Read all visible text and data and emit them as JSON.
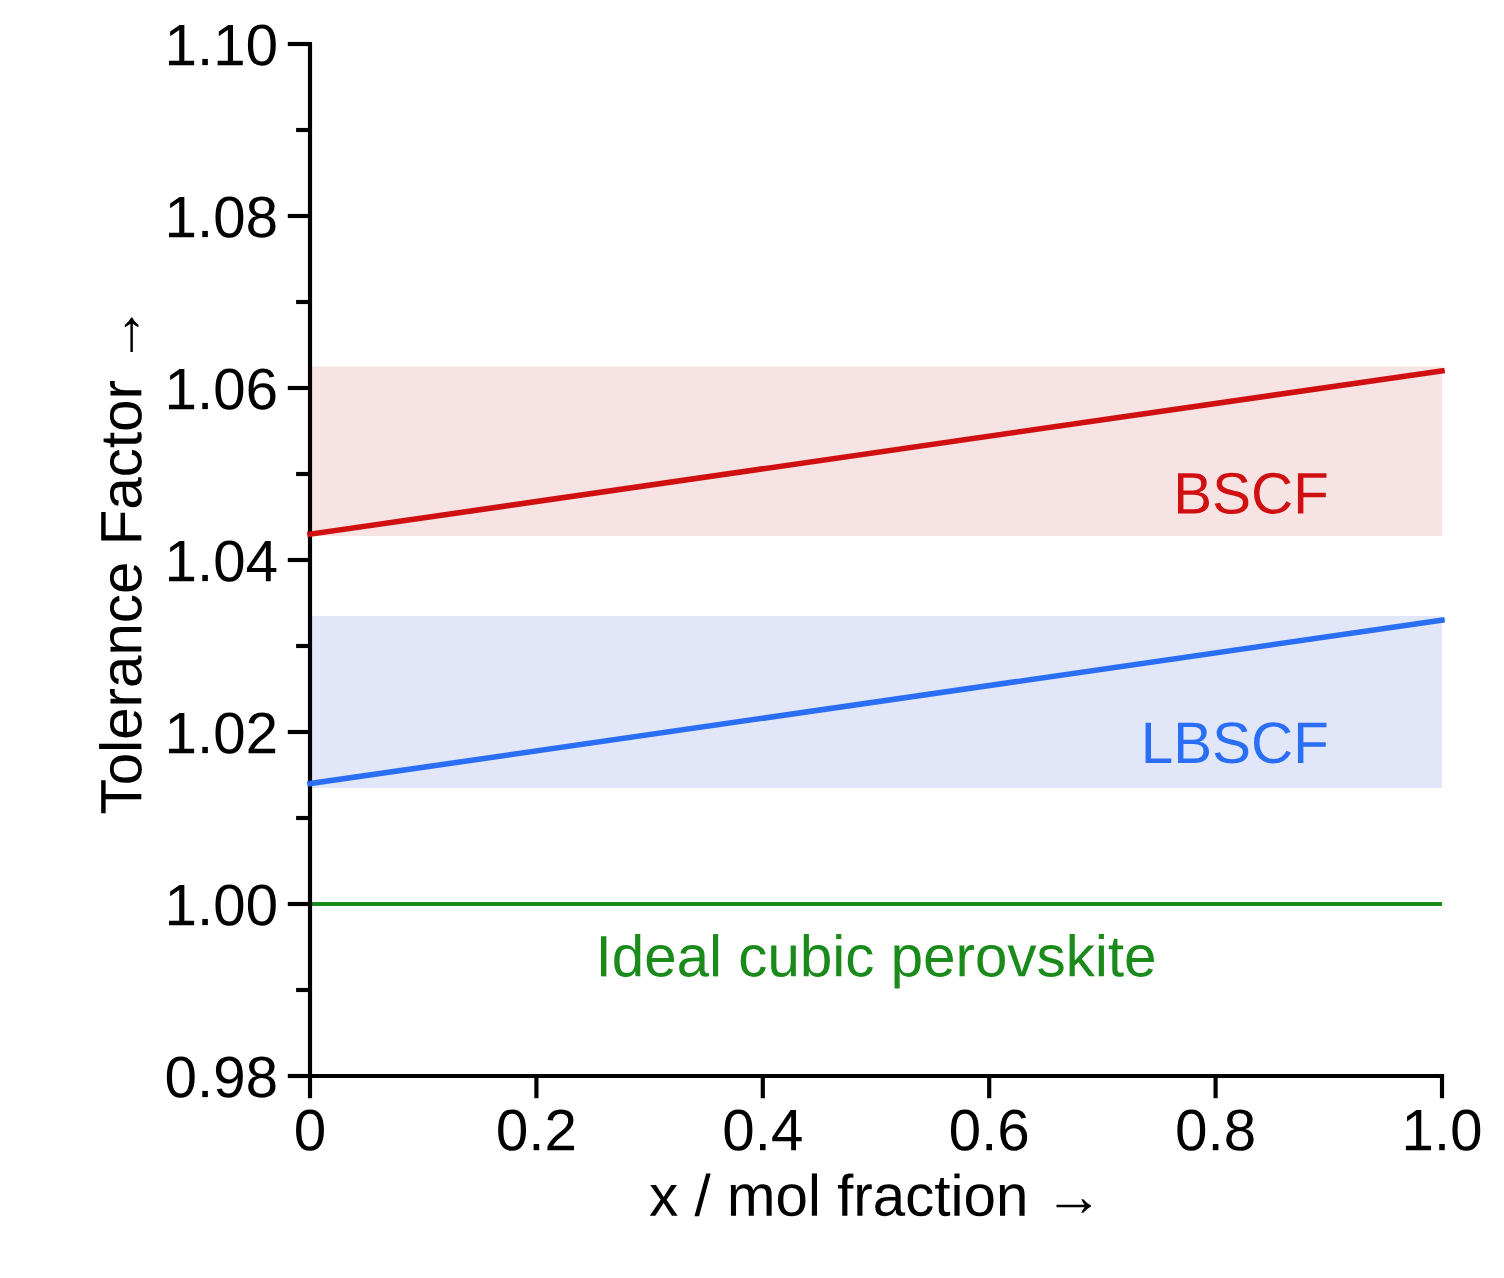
{
  "chart_data": {
    "type": "line",
    "xlabel": "x / mol fraction →",
    "ylabel": "Tolerance Factor →",
    "xlim": [
      0,
      1.0
    ],
    "ylim": [
      0.98,
      1.1
    ],
    "xticks": [
      0,
      0.2,
      0.4,
      0.6,
      0.8,
      {
        "value": 1.0,
        "label": "1.0"
      }
    ],
    "yticks": [
      {
        "value": 0.98,
        "label": "0.98"
      },
      {
        "value": 0.99,
        "label": null
      },
      {
        "value": 1.0,
        "label": "1.00"
      },
      {
        "value": 1.01,
        "label": null
      },
      {
        "value": 1.02,
        "label": "1.02"
      },
      {
        "value": 1.03,
        "label": null
      },
      {
        "value": 1.04,
        "label": "1.04"
      },
      {
        "value": 1.05,
        "label": null
      },
      {
        "value": 1.06,
        "label": "1.06"
      },
      {
        "value": 1.07,
        "label": null
      },
      {
        "value": 1.08,
        "label": "1.08"
      },
      {
        "value": 1.09,
        "label": null
      },
      {
        "value": 1.1,
        "label": "1.10"
      }
    ],
    "x": [
      0,
      1.0
    ],
    "series": [
      {
        "name": "BSCF",
        "color": "#d01010",
        "values": [
          1.043,
          1.062
        ]
      },
      {
        "name": "LBSCF",
        "color": "#2a6ef5",
        "values": [
          1.014,
          1.033
        ]
      }
    ],
    "bands": [
      {
        "axis": "y",
        "from": 1.0428,
        "to": 1.0625,
        "color": "#f7e3e3"
      },
      {
        "axis": "y",
        "from": 1.0135,
        "to": 1.0335,
        "color": "#e1e6f9"
      }
    ],
    "ref_lines": [
      {
        "axis": "y",
        "value": 1.0,
        "label": "Ideal cubic perovskite",
        "color": "#1a8a1a"
      }
    ],
    "legend": false,
    "grid": false,
    "marker": "none",
    "line_style": "solid"
  }
}
